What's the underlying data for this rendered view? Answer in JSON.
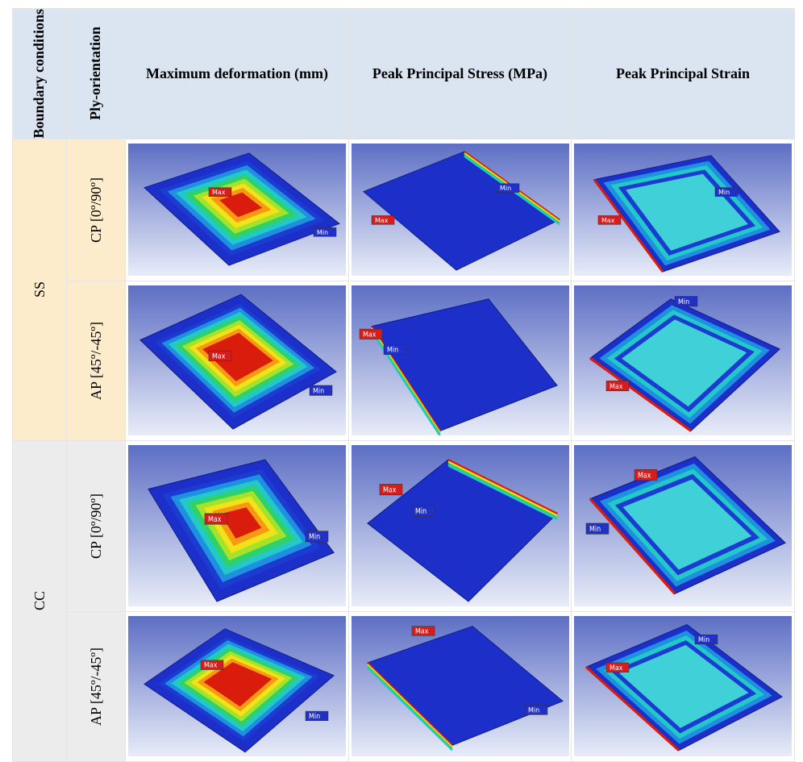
{
  "table": {
    "header": [
      "Boundary conditions",
      "Ply-orientation",
      "Maximum deformation (mm)",
      "Peak Principal Stress (MPa)",
      "Peak Principal Strain"
    ],
    "rows": [
      {
        "boundary": "SS",
        "ply": "CP [0º/90º]",
        "plots": [
          {
            "max": "Max",
            "min": "Min"
          },
          {
            "max": "Max",
            "min": "Min"
          },
          {
            "max": "Max",
            "min": "Min"
          }
        ]
      },
      {
        "ply": "AP [45º/-45º]",
        "plots": [
          {
            "max": "Max",
            "min": "Min"
          },
          {
            "max": "Max",
            "min": "Min"
          },
          {
            "max": "Max",
            "min": "Min"
          }
        ]
      },
      {
        "boundary": "CC",
        "ply": "CP [0º/90º]",
        "plots": [
          {
            "max": "Max",
            "min": "Min"
          },
          {
            "max": "Max",
            "min": "Min"
          },
          {
            "max": "Max",
            "min": "Min"
          }
        ]
      },
      {
        "ply": "AP [45º/-45º]",
        "plots": [
          {
            "max": "Max",
            "min": "Min"
          },
          {
            "max": "Max",
            "min": "Min"
          },
          {
            "max": "Max",
            "min": "Min"
          }
        ]
      }
    ]
  }
}
